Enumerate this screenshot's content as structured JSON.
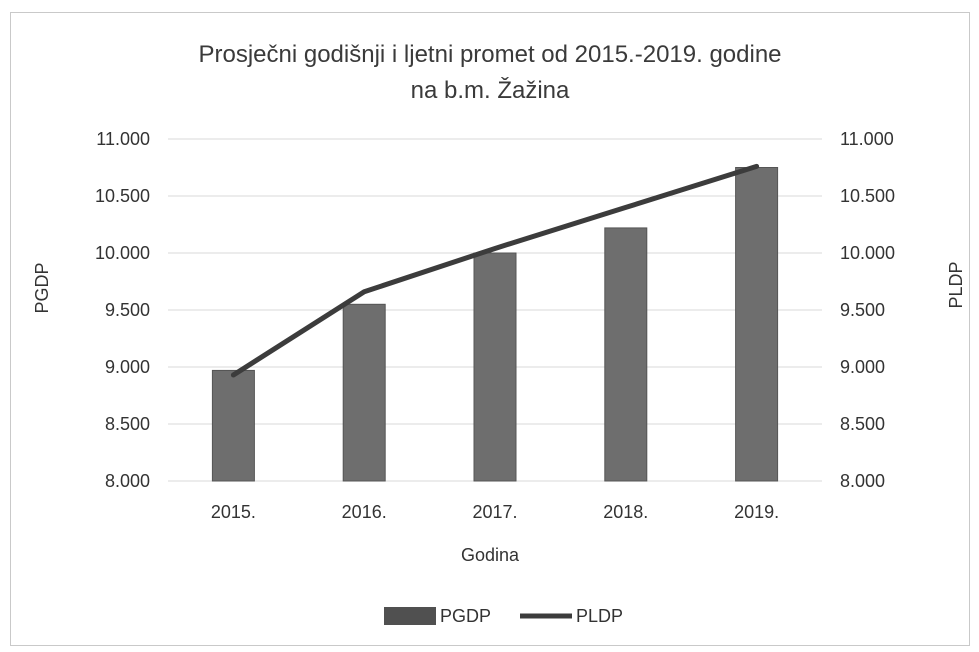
{
  "chart_data": {
    "type": "bar",
    "title_line1": "Prosječni godišnji i ljetni promet od 2015.-2019. godine",
    "title_line2": "na b.m. Žažina",
    "xlabel": "Godina",
    "ylabel": "PGDP",
    "ylabel_right": "PLDP",
    "categories": [
      "2015.",
      "2016.",
      "2017.",
      "2018.",
      "2019."
    ],
    "ylim": [
      8000,
      11000
    ],
    "y_ticks": [
      "8.000",
      "8.500",
      "9.000",
      "9.500",
      "10.000",
      "10.500",
      "11.000"
    ],
    "y_tick_values": [
      8000,
      8500,
      9000,
      9500,
      10000,
      10500,
      11000
    ],
    "grid": true,
    "legend_position": "bottom",
    "series": [
      {
        "name": "PGDP",
        "kind": "bar",
        "values": [
          8970,
          9550,
          10000,
          10220,
          10750
        ],
        "color": "#6e6e6e"
      },
      {
        "name": "PLDP",
        "kind": "line",
        "values": [
          8930,
          9660,
          10040,
          10400,
          10760
        ],
        "color": "#3c3c3c"
      }
    ]
  }
}
